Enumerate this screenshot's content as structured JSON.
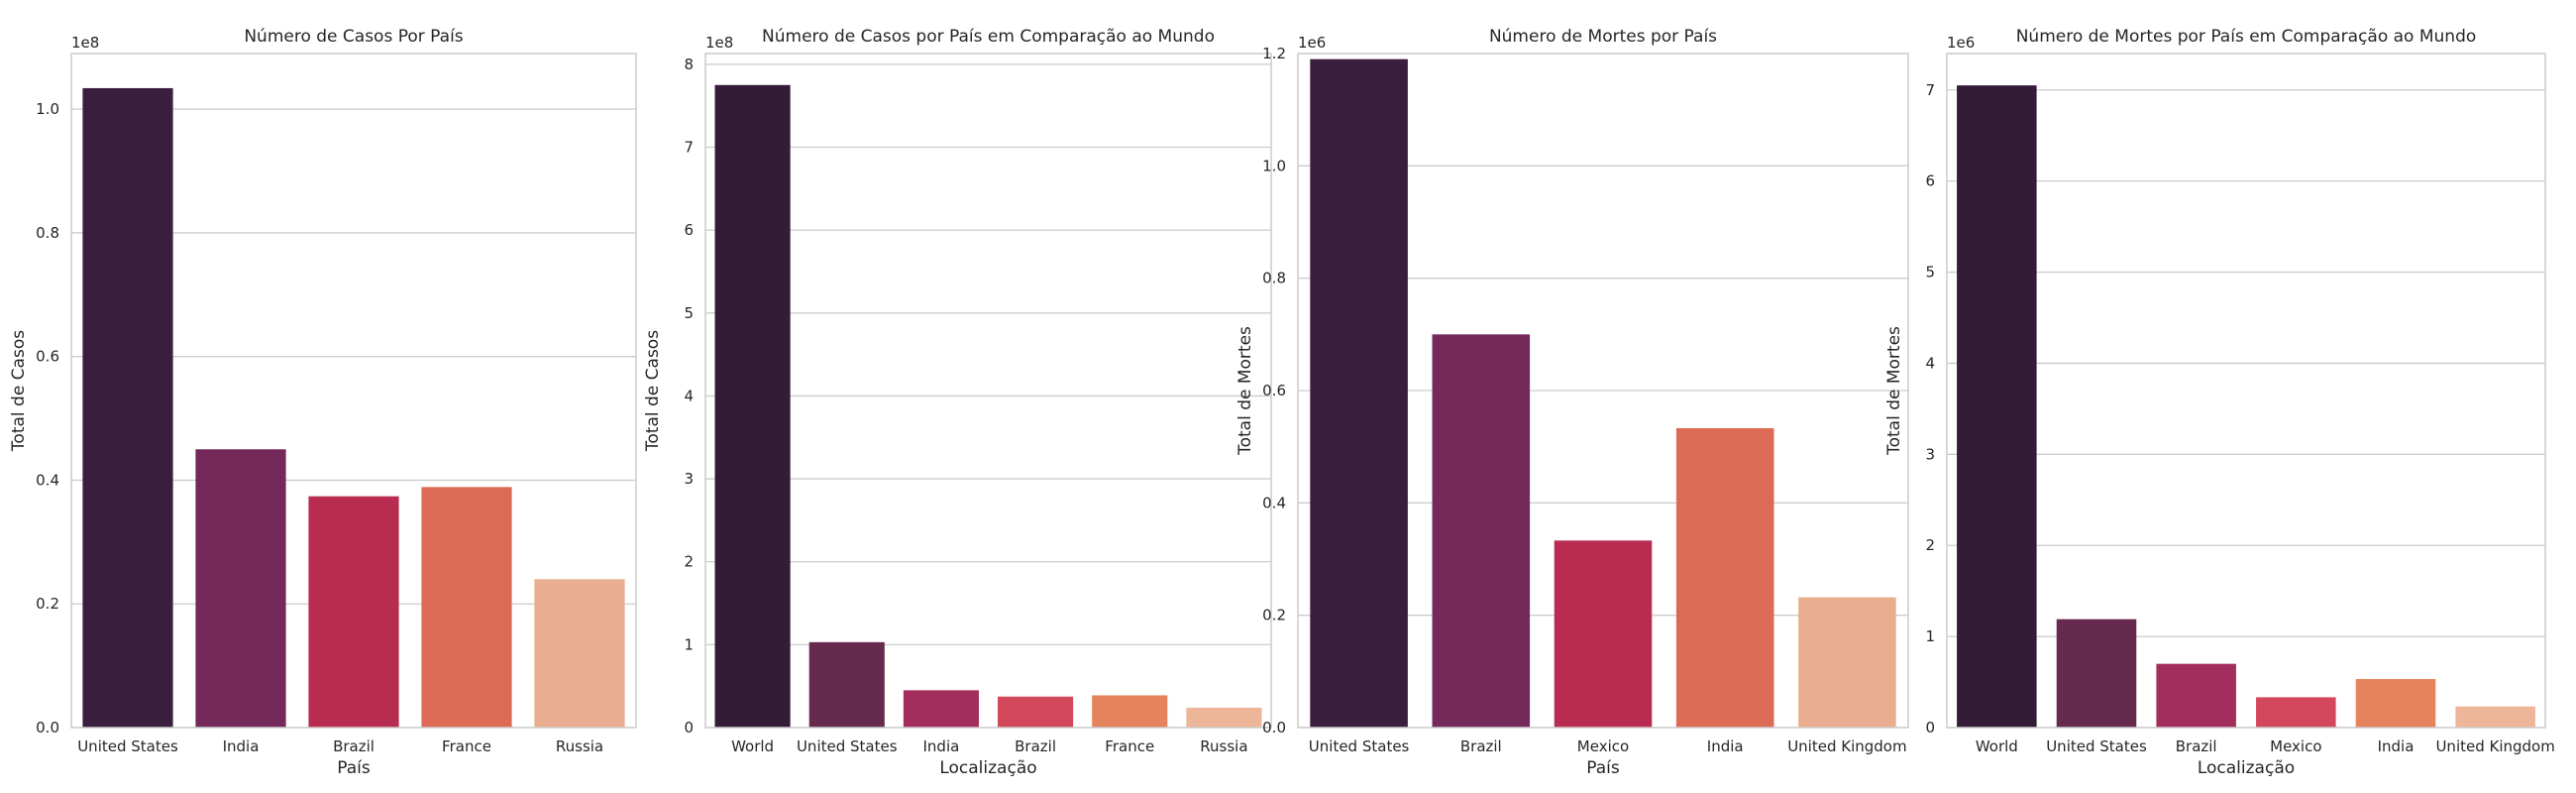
{
  "chart_data": [
    {
      "type": "bar",
      "title": "Número de Casos Por País",
      "xlabel": "País",
      "ylabel": "Total de Casos",
      "y_offset_label": "1e8",
      "ylim": [
        0,
        1.09
      ],
      "y_ticks": [
        0.0,
        0.2,
        0.4,
        0.6,
        0.8,
        1.0
      ],
      "y_tick_labels": [
        "0.0",
        "0.2",
        "0.4",
        "0.6",
        "0.8",
        "1.0"
      ],
      "categories": [
        "United States",
        "India",
        "Brazil",
        "France",
        "Russia"
      ],
      "values": [
        1.034,
        0.45,
        0.374,
        0.389,
        0.24
      ],
      "colors": [
        "#35193e",
        "#701f57",
        "#ad1759",
        "#e13342",
        "#f37651",
        "#f6b48f"
      ],
      "bar_colors": [
        "#3a1e3d",
        "#74295a",
        "#b92c51",
        "#dc6a55",
        "#e9ae8f"
      ],
      "grid": true
    },
    {
      "type": "bar",
      "title": "Número de Casos por País em Comparação ao Mundo",
      "xlabel": "Localização",
      "ylabel": "Total de Casos",
      "y_offset_label": "1e8",
      "ylim": [
        0,
        8.13
      ],
      "y_ticks": [
        0,
        1,
        2,
        3,
        4,
        5,
        6,
        7,
        8
      ],
      "y_tick_labels": [
        "0",
        "1",
        "2",
        "3",
        "4",
        "5",
        "6",
        "7",
        "8"
      ],
      "categories": [
        "World",
        "United States",
        "India",
        "Brazil",
        "France",
        "Russia"
      ],
      "values": [
        7.75,
        1.03,
        0.45,
        0.374,
        0.389,
        0.24
      ],
      "bar_colors": [
        "#321c36",
        "#672a4f",
        "#a32d5c",
        "#d2485a",
        "#e5845c",
        "#eeb698"
      ],
      "grid": true
    },
    {
      "type": "bar",
      "title": "Número de Mortes por País",
      "xlabel": "País",
      "ylabel": "Total de Mortes",
      "y_offset_label": "1e6",
      "ylim": [
        0,
        1.2
      ],
      "y_ticks": [
        0.0,
        0.2,
        0.4,
        0.6,
        0.8,
        1.0,
        1.2
      ],
      "y_tick_labels": [
        "0.0",
        "0.2",
        "0.4",
        "0.6",
        "0.8",
        "1.0",
        "1.2"
      ],
      "categories": [
        "United States",
        "Brazil",
        "Mexico",
        "India",
        "United Kingdom"
      ],
      "values": [
        1.19,
        0.7,
        0.333,
        0.533,
        0.232
      ],
      "bar_colors": [
        "#3a1e3d",
        "#74295a",
        "#b92c51",
        "#dc6a55",
        "#e9ae8f"
      ],
      "grid": true
    },
    {
      "type": "bar",
      "title": "Número de Mortes por País em Comparação ao Mundo",
      "xlabel": "Localização",
      "ylabel": "Total de Mortes",
      "y_offset_label": "1e6",
      "ylim": [
        0,
        7.4
      ],
      "y_ticks": [
        0,
        1,
        2,
        3,
        4,
        5,
        6,
        7
      ],
      "y_tick_labels": [
        "0",
        "1",
        "2",
        "3",
        "4",
        "5",
        "6",
        "7"
      ],
      "categories": [
        "World",
        "United States",
        "Brazil",
        "Mexico",
        "India",
        "United Kingdom"
      ],
      "values": [
        7.05,
        1.19,
        0.7,
        0.333,
        0.533,
        0.232
      ],
      "bar_colors": [
        "#321c36",
        "#672a4f",
        "#a32d5c",
        "#d2485a",
        "#e5845c",
        "#eeb698"
      ],
      "grid": true
    }
  ]
}
